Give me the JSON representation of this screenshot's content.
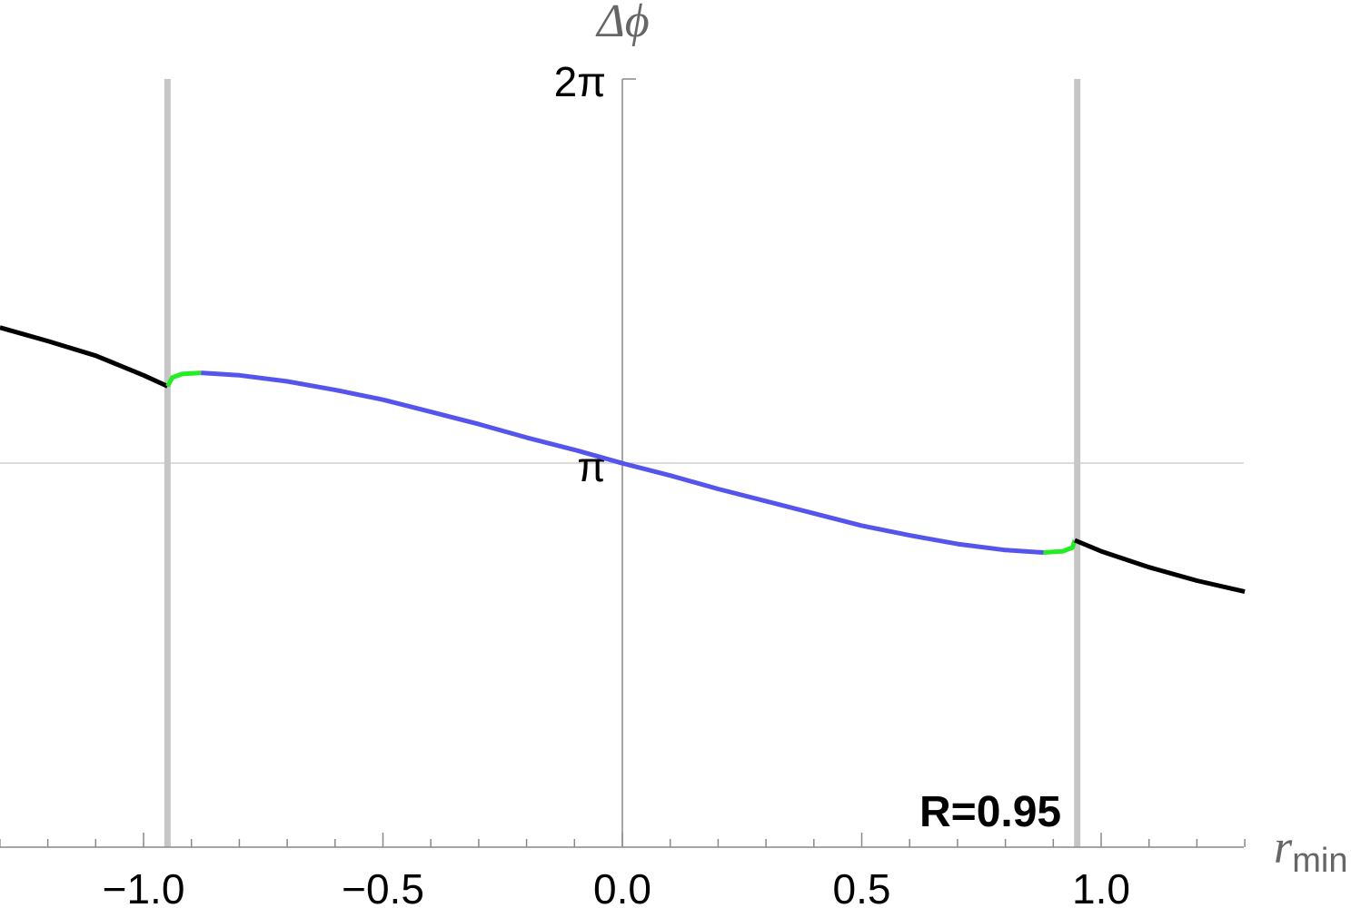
{
  "chart_data": {
    "type": "line",
    "title": "",
    "xlabel": "r",
    "xlabel_sub": "min",
    "ylabel": "Δϕ",
    "xlim": [
      -1.3,
      1.3
    ],
    "ylim": [
      0,
      6.283
    ],
    "x_ticks": [
      {
        "value": -1.0,
        "label": "−1.0"
      },
      {
        "value": -0.5,
        "label": "−0.5"
      },
      {
        "value": 0.0,
        "label": "0.0"
      },
      {
        "value": 0.5,
        "label": "0.5"
      },
      {
        "value": 1.0,
        "label": "1.0"
      }
    ],
    "y_ticks": [
      {
        "value": 3.1416,
        "label": "π"
      },
      {
        "value": 6.2832,
        "label": "2π"
      }
    ],
    "annotation": "R=0.95",
    "vertical_lines": [
      -0.95,
      0.95
    ],
    "horizontal_gridline": 3.1416,
    "series": [
      {
        "color": "#000000",
        "points": [
          [
            -1.3,
            4.25
          ],
          [
            -1.2,
            4.14
          ],
          [
            -1.1,
            4.02
          ],
          [
            -1.0,
            3.86
          ],
          [
            -0.95,
            3.77
          ]
        ]
      },
      {
        "color": "#22ee22",
        "points": [
          [
            -0.95,
            3.77
          ],
          [
            -0.94,
            3.84
          ],
          [
            -0.92,
            3.87
          ],
          [
            -0.88,
            3.88
          ]
        ]
      },
      {
        "color": "#5555ee",
        "points": [
          [
            -0.88,
            3.88
          ],
          [
            -0.8,
            3.86
          ],
          [
            -0.7,
            3.81
          ],
          [
            -0.6,
            3.74
          ],
          [
            -0.5,
            3.66
          ],
          [
            -0.4,
            3.56
          ],
          [
            -0.3,
            3.46
          ],
          [
            -0.2,
            3.35
          ],
          [
            -0.1,
            3.25
          ],
          [
            0.0,
            3.14
          ],
          [
            0.1,
            3.04
          ],
          [
            0.2,
            2.93
          ],
          [
            0.3,
            2.83
          ],
          [
            0.4,
            2.73
          ],
          [
            0.5,
            2.63
          ],
          [
            0.6,
            2.55
          ],
          [
            0.7,
            2.48
          ],
          [
            0.8,
            2.43
          ],
          [
            0.88,
            2.41
          ]
        ]
      },
      {
        "color": "#22ee22",
        "points": [
          [
            0.88,
            2.41
          ],
          [
            0.92,
            2.42
          ],
          [
            0.94,
            2.45
          ],
          [
            0.945,
            2.51
          ]
        ]
      },
      {
        "color": "#000000",
        "points": [
          [
            0.945,
            2.51
          ],
          [
            1.0,
            2.42
          ],
          [
            1.1,
            2.29
          ],
          [
            1.2,
            2.18
          ],
          [
            1.3,
            2.09
          ]
        ]
      }
    ]
  }
}
